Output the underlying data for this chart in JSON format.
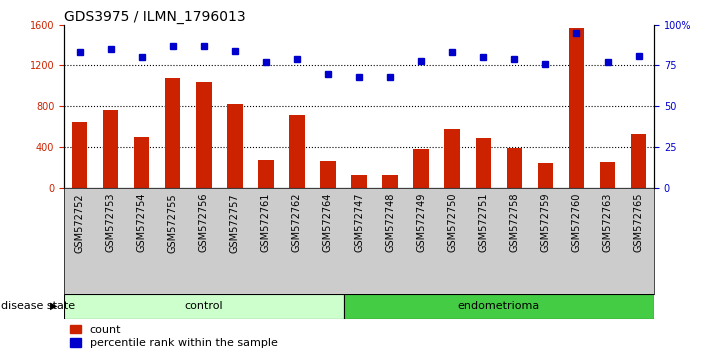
{
  "title": "GDS3975 / ILMN_1796013",
  "samples": [
    "GSM572752",
    "GSM572753",
    "GSM572754",
    "GSM572755",
    "GSM572756",
    "GSM572757",
    "GSM572761",
    "GSM572762",
    "GSM572764",
    "GSM572747",
    "GSM572748",
    "GSM572749",
    "GSM572750",
    "GSM572751",
    "GSM572758",
    "GSM572759",
    "GSM572760",
    "GSM572763",
    "GSM572765"
  ],
  "counts": [
    640,
    760,
    500,
    1080,
    1040,
    820,
    270,
    710,
    260,
    120,
    120,
    380,
    580,
    490,
    390,
    240,
    1570,
    250,
    530
  ],
  "percentiles": [
    83,
    85,
    80,
    87,
    87,
    84,
    77,
    79,
    70,
    68,
    68,
    78,
    83,
    80,
    79,
    76,
    95,
    77,
    81
  ],
  "n_control": 9,
  "n_endometrioma": 10,
  "ylim_left": [
    0,
    1600
  ],
  "ylim_right": [
    0,
    100
  ],
  "yticks_left": [
    0,
    400,
    800,
    1200,
    1600
  ],
  "yticks_right": [
    0,
    25,
    50,
    75,
    100
  ],
  "bar_color": "#cc2200",
  "dot_color": "#0000cc",
  "control_bg_light": "#ccffcc",
  "endometrioma_bg": "#44cc44",
  "xlabel_bg": "#cccccc",
  "plot_bg": "#ffffff",
  "grid_color": "#000000",
  "legend_count_label": "count",
  "legend_pct_label": "percentile rank within the sample",
  "disease_state_label": "disease state",
  "control_label": "control",
  "endometrioma_label": "endometrioma",
  "title_fontsize": 10,
  "tick_fontsize": 7,
  "label_fontsize": 8,
  "bar_width": 0.5,
  "figsize": [
    7.11,
    3.54
  ],
  "dpi": 100
}
